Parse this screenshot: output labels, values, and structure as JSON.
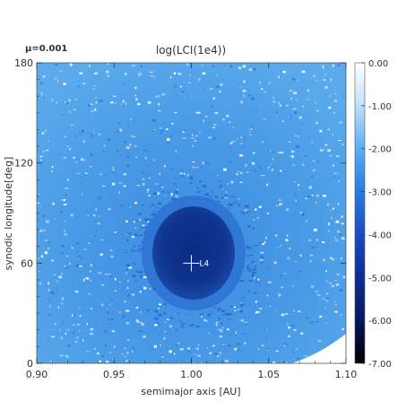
{
  "param_label": "μ=0.001",
  "chart_data": {
    "type": "heatmap",
    "title": "log(LCI(1e4))",
    "xlabel": "semimajor axis [AU]",
    "ylabel": "synodic longitude[deg]",
    "xlim": [
      0.9,
      1.1
    ],
    "ylim": [
      0,
      180
    ],
    "x_ticks": [
      "0.90",
      "0.95",
      "1.00",
      "1.05",
      "1.10"
    ],
    "x_tick_values": [
      0.9,
      0.95,
      1.0,
      1.05,
      1.1
    ],
    "y_ticks": [
      "0",
      "60",
      "120",
      "180"
    ],
    "y_tick_values": [
      0,
      60,
      120,
      180
    ],
    "colorbar": {
      "range": [
        -7.0,
        0.0
      ],
      "ticks": [
        "0.00",
        "-1.00",
        "-2.00",
        "-3.00",
        "-4.00",
        "-5.00",
        "-6.00",
        "-7.00"
      ],
      "tick_values": [
        0,
        -1,
        -2,
        -3,
        -4,
        -5,
        -6,
        -7
      ]
    },
    "marker": {
      "label": "L4",
      "x": 1.0,
      "y": 60
    },
    "colors": {
      "background_field": "#3d8fdf",
      "stable_region": "#0a2e88",
      "chaotic_white": "#ffffff"
    }
  }
}
